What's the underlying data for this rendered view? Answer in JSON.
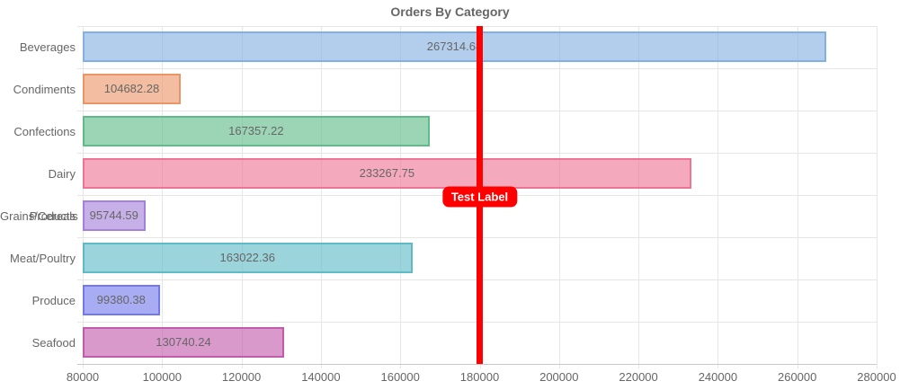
{
  "title": "Orders By Category",
  "chart_data": {
    "type": "bar",
    "orientation": "horizontal",
    "title": "Orders By Category",
    "categories": [
      "Beverages",
      "Condiments",
      "Confections",
      "Dairy Products",
      "Grains/Cereals",
      "Meat/Poultry",
      "Produce",
      "Seafood"
    ],
    "values": [
      267314.68,
      104682.28,
      167357.22,
      233267.75,
      95744.59,
      163022.36,
      99380.38,
      130740.24
    ],
    "value_labels": [
      "267314.68",
      "104682.28",
      "167357.22",
      "233267.75",
      "95744.59",
      "163022.36",
      "99380.38",
      "130740.24"
    ],
    "bar_fill_colors": [
      "rgba(132,176,225,0.62)",
      "rgba(234,149,101,0.62)",
      "rgba(95,187,136,0.62)",
      "rgba(237,116,149,0.62)",
      "rgba(164,128,216,0.62)",
      "rgba(94,186,196,0.62)",
      "rgba(115,121,234,0.62)",
      "rgba(194,91,171,0.62)"
    ],
    "bar_border_colors": [
      "#84b0e1",
      "#ea9565",
      "#5fbb88",
      "#ed7495",
      "#a480d8",
      "#5ebac4",
      "#7379ea",
      "#c25bab"
    ],
    "x_ticks": [
      80000,
      100000,
      120000,
      140000,
      160000,
      180000,
      200000,
      220000,
      240000,
      260000,
      280000
    ],
    "x_tick_labels": [
      "80000",
      "100000",
      "120000",
      "140000",
      "160000",
      "180000",
      "200000",
      "220000",
      "240000",
      "260000",
      "280000"
    ],
    "xlim": [
      80000,
      280000
    ],
    "grid": true,
    "legend": "none",
    "annotation": {
      "label": "Test Label",
      "x": 180000,
      "line_color": "#ff0000",
      "box_color": "#ff0000",
      "text_color": "#ffffff"
    }
  },
  "colors": {
    "grid": "#e6e6e6",
    "axis_line": "#c9c9c9",
    "text": "#666666",
    "background": "#ffffff"
  }
}
